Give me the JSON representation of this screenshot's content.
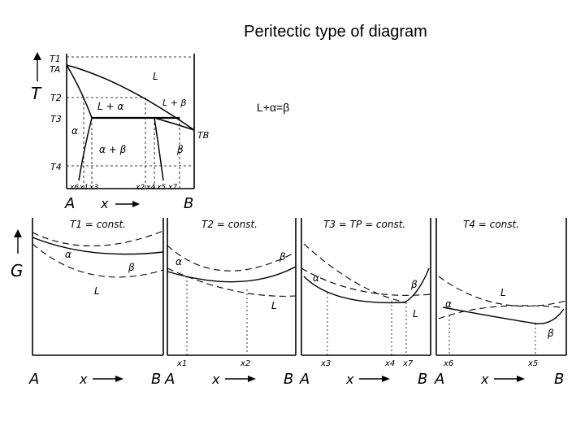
{
  "title": "Peritectic type of diagram",
  "reaction": "L+α=β",
  "phase_diagram": {
    "axis_T": "T",
    "axis_x": "x",
    "component_a": "A",
    "component_b": "B",
    "temps": [
      "T1",
      "TA",
      "T2",
      "T3",
      "T4",
      "TB"
    ],
    "regions": [
      "L",
      "L + α",
      "L + β",
      "α",
      "α + β",
      "β"
    ],
    "compositions": [
      "x6",
      "x1",
      "x3",
      "x2",
      "x4",
      "x5",
      "x7"
    ]
  },
  "g_diagrams": {
    "axis_G": "G",
    "axis_x": "x",
    "component_a": "A",
    "component_b": "B",
    "panels": [
      {
        "condition": "T1 = const.",
        "labels": [
          "α",
          "β",
          "L"
        ],
        "compositions": []
      },
      {
        "condition": "T2 = const.",
        "labels": [
          "α",
          "β",
          "L"
        ],
        "compositions": [
          "x1",
          "x2"
        ]
      },
      {
        "condition": "T3 = TP = const.",
        "labels": [
          "α",
          "β",
          "L"
        ],
        "compositions": [
          "x3",
          "x4",
          "x7"
        ]
      },
      {
        "condition": "T4 = const.",
        "labels": [
          "α",
          "L",
          "β"
        ],
        "compositions": [
          "x6",
          "x5"
        ]
      }
    ]
  }
}
